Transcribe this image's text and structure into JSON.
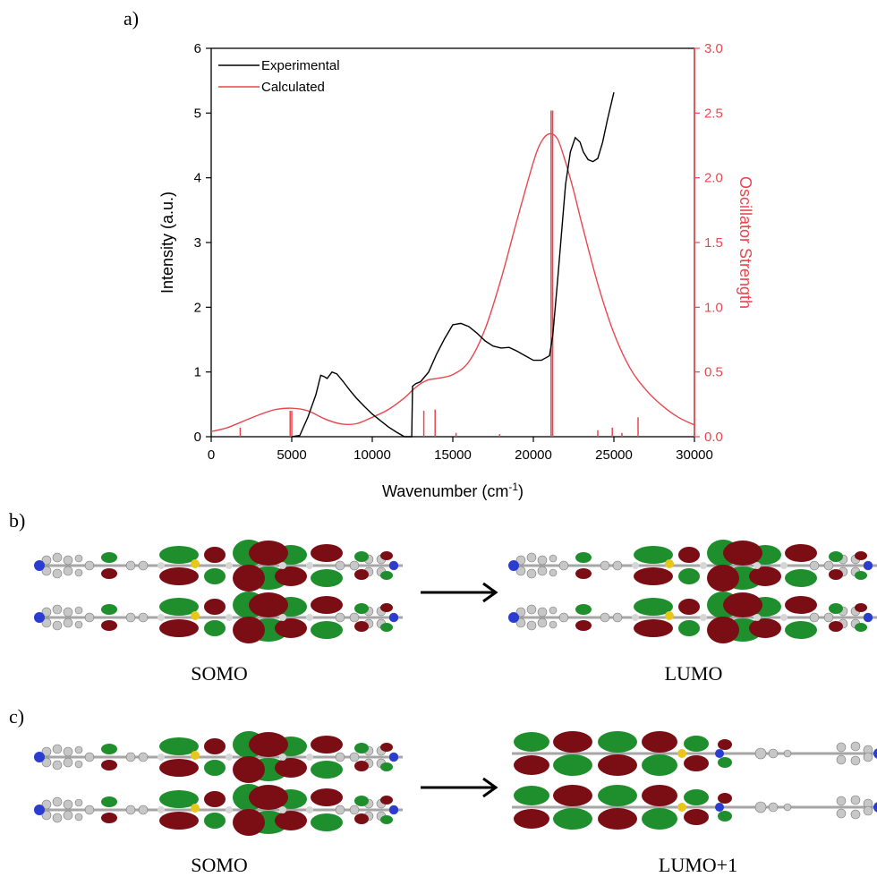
{
  "panels": {
    "a": "a)",
    "b": "b)",
    "c": "c)"
  },
  "orbitals": {
    "b_left": "SOMO",
    "b_right": "LUMO",
    "c_left": "SOMO",
    "c_right": "LUMO+1"
  },
  "chart_data": {
    "type": "line",
    "xlabel_main": "Wavenumber (cm",
    "xlabel_sup": "-1",
    "xlabel_close": ")",
    "ylabel_left": "Intensity (a.u.)",
    "ylabel_right": "Oscillator Strength",
    "xlim": [
      0,
      30000
    ],
    "ylim_left": [
      0,
      6
    ],
    "ylim_right": [
      0,
      3
    ],
    "x_ticks": [
      0,
      5000,
      10000,
      15000,
      20000,
      25000,
      30000
    ],
    "y_ticks_left": [
      0,
      1,
      2,
      3,
      4,
      5,
      6
    ],
    "y_ticks_right": [
      "0.0",
      "0.5",
      "1.0",
      "1.5",
      "2.0",
      "2.5",
      "3.0"
    ],
    "legend_position": "top-left",
    "colors": {
      "experimental": "#000000",
      "calculated": "#e8474f"
    },
    "series": [
      {
        "name": "Experimental",
        "axis": "left",
        "x": [
          5000,
          5500,
          6000,
          6500,
          6800,
          7000,
          7200,
          7500,
          7800,
          8200,
          8600,
          9000,
          9500,
          10000,
          10500,
          11000,
          11500,
          12000,
          12300,
          12450,
          12500,
          12700,
          13000,
          13500,
          14000,
          14500,
          15000,
          15500,
          16000,
          16500,
          17000,
          17500,
          18000,
          18500,
          19000,
          19500,
          20000,
          20500,
          21000,
          21200,
          21500,
          21800,
          22000,
          22300,
          22600,
          22900,
          23100,
          23400,
          23700,
          24000,
          24300,
          24600,
          25000
        ],
        "y": [
          0.0,
          0.02,
          0.3,
          0.65,
          0.95,
          0.93,
          0.9,
          1.0,
          0.97,
          0.85,
          0.72,
          0.6,
          0.47,
          0.35,
          0.25,
          0.15,
          0.07,
          0.0,
          0.0,
          0.0,
          0.78,
          0.82,
          0.85,
          1.0,
          1.28,
          1.52,
          1.73,
          1.75,
          1.7,
          1.6,
          1.48,
          1.4,
          1.37,
          1.38,
          1.32,
          1.25,
          1.18,
          1.18,
          1.25,
          1.55,
          2.4,
          3.3,
          3.9,
          4.4,
          4.62,
          4.55,
          4.4,
          4.28,
          4.25,
          4.3,
          4.55,
          4.9,
          5.32
        ]
      },
      {
        "name": "Calculated",
        "axis": "right",
        "x": [
          0,
          1000,
          2000,
          3000,
          4000,
          5000,
          6000,
          7000,
          8000,
          9000,
          10000,
          11000,
          12000,
          12500,
          13000,
          13500,
          14000,
          15000,
          16000,
          17000,
          18000,
          19000,
          20000,
          20500,
          21000,
          21500,
          22000,
          22500,
          23000,
          24000,
          25000,
          26000,
          27000,
          28000,
          29000,
          30000
        ],
        "y": [
          0.04,
          0.07,
          0.12,
          0.17,
          0.21,
          0.22,
          0.2,
          0.14,
          0.1,
          0.1,
          0.15,
          0.21,
          0.3,
          0.36,
          0.41,
          0.44,
          0.45,
          0.48,
          0.58,
          0.83,
          1.22,
          1.68,
          2.12,
          2.28,
          2.34,
          2.3,
          2.12,
          1.9,
          1.65,
          1.18,
          0.8,
          0.53,
          0.36,
          0.24,
          0.15,
          0.09
        ]
      }
    ],
    "sticks": {
      "axis": "right",
      "x": [
        1800,
        4900,
        5000,
        13200,
        13900,
        15200,
        17900,
        21100,
        21200,
        24000,
        24900,
        25500,
        26500
      ],
      "y": [
        0.07,
        0.2,
        0.2,
        0.2,
        0.21,
        0.03,
        0.02,
        2.52,
        2.52,
        0.05,
        0.07,
        0.03,
        0.15
      ]
    }
  }
}
